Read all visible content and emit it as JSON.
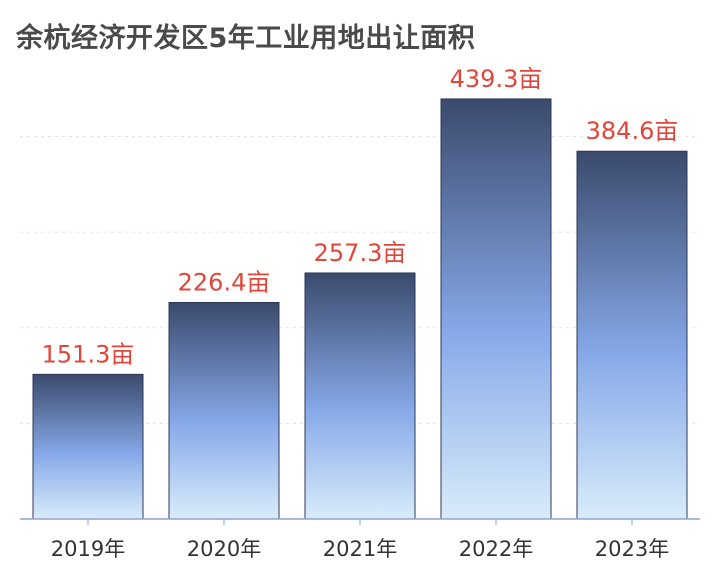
{
  "colors": {
    "title": "#4a4a4a",
    "value_label": "#e0463a",
    "tick_label": "#333333",
    "axis": "#8ea6cc",
    "gridline": "#e4e4e4",
    "bar_top": "#3a4a6c",
    "bar_mid": "#86a8e8",
    "bar_bottom": "#d8ecfa",
    "bar_border": "#2e3a58"
  },
  "chart_data": {
    "type": "bar",
    "title": "余杭经济开发区5年工业用地出让面积",
    "xlabel": "",
    "ylabel": "",
    "categories": [
      "2019年",
      "2020年",
      "2021年",
      "2022年",
      "2023年"
    ],
    "values": [
      151.3,
      226.4,
      257.3,
      439.3,
      384.6
    ],
    "value_labels": [
      "151.3亩",
      "226.4亩",
      "257.3亩",
      "439.3亩",
      "384.6亩"
    ],
    "unit": "亩",
    "ylim": [
      0,
      480
    ],
    "grid": true,
    "legend": "none"
  }
}
